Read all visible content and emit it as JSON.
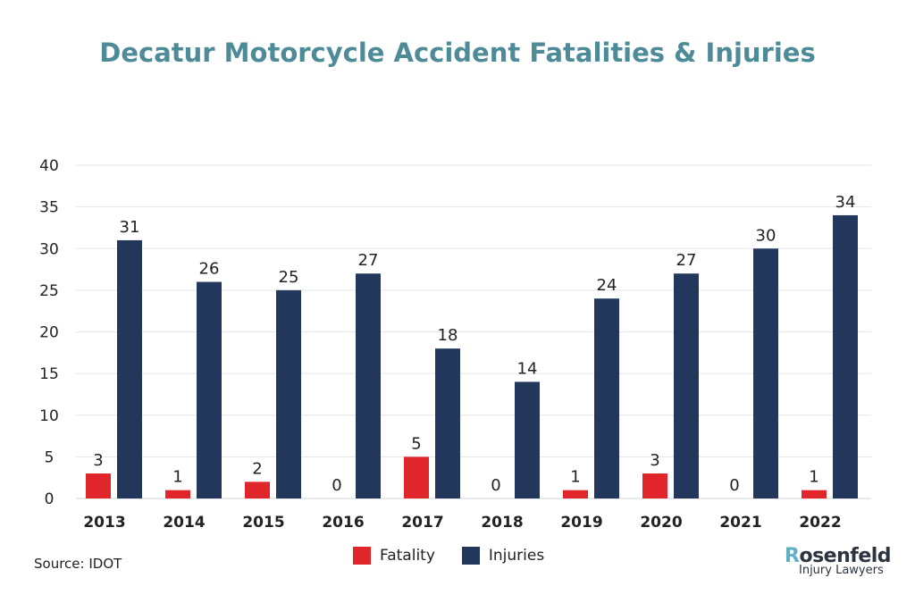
{
  "chart_data": {
    "type": "bar",
    "title": "Decatur  Motorcycle Accident Fatalities & Injuries",
    "categories": [
      "2013",
      "2014",
      "2015",
      "2016",
      "2017",
      "2018",
      "2019",
      "2020",
      "2021",
      "2022"
    ],
    "series": [
      {
        "name": "Fatality",
        "color": "#e1262b",
        "values": [
          3,
          1,
          2,
          0,
          5,
          0,
          1,
          3,
          0,
          1
        ]
      },
      {
        "name": "Injuries",
        "color": "#23365b",
        "values": [
          31,
          26,
          25,
          27,
          18,
          14,
          24,
          27,
          30,
          34
        ]
      }
    ],
    "ylim": [
      0,
      40
    ],
    "yticks": [
      0,
      5,
      10,
      15,
      20,
      25,
      30,
      35,
      40
    ],
    "grid": true,
    "legend": "bottom"
  },
  "source": "Source: IDOT",
  "logo": {
    "name_first": "R",
    "name_rest": "osenfeld",
    "sub": "Injury Lawyers"
  }
}
